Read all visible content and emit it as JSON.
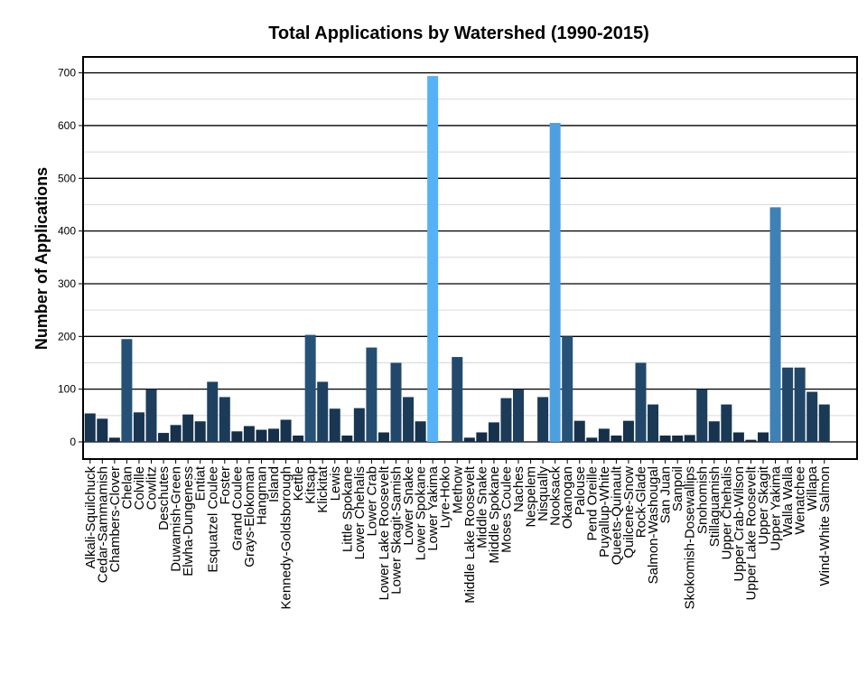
{
  "chart_data": {
    "type": "bar",
    "title": "Total Applications by Watershed (1990-2015)",
    "xlabel": "",
    "ylabel": "Number of Applications",
    "ylim": [
      -35,
      730
    ],
    "yticks": [
      0,
      100,
      200,
      300,
      400,
      500,
      600,
      700
    ],
    "grid": {
      "major": true,
      "minor": true
    },
    "legend": "none",
    "colors": {
      "low": "#132B43",
      "high": "#56B1F7",
      "axis": "#000000",
      "grid_major": "#000000",
      "grid_minor": "#d9d9d9"
    },
    "categories": [
      "Alkali-Squilchuck",
      "Cedar-Sammamish",
      "Chambers-Clover",
      "Chelan",
      "Colville",
      "Cowlitz",
      "Deschutes",
      "Duwamish-Green",
      "Elwha-Dungeness",
      "Entiat",
      "Esquatzel Coulee",
      "Foster",
      "Grand Coulee",
      "Grays-Elokoman",
      "Hangman",
      "Island",
      "Kennedy-Goldsborough",
      "Kettle",
      "Kitsap",
      "Klickitat",
      "Lewis",
      "Little Spokane",
      "Lower Chehalis",
      "Lower Crab",
      "Lower Lake Roosevelt",
      "Lower Skagit-Samish",
      "Lower Snake",
      "Lower Spokane",
      "Lower Yakima",
      "Lyre-Hoko",
      "Methow",
      "Middle Lake Roosevelt",
      "Middle Snake",
      "Middle Spokane",
      "Moses Coulee",
      "Naches",
      "Nespelem",
      "Nisqually",
      "Nooksack",
      "Okanogan",
      "Palouse",
      "Pend Oreille",
      "Puyallup-White",
      "Queets-Quinault",
      "Quilcene-Snow",
      "Rock-Glade",
      "Salmon-Washougal",
      "San Juan",
      "Sanpoil",
      "Skokomish-Dosewallips",
      "Snohomish",
      "Stillaguamish",
      "Upper Chehalis",
      "Upper Crab-Wilson",
      "Upper Lake Roosevelt",
      "Upper Skagit",
      "Upper Yakima",
      "Walla Walla",
      "Wenatchee",
      "Willapa",
      "Wind-White Salmon"
    ],
    "values": [
      54,
      44,
      8,
      195,
      56,
      100,
      17,
      32,
      52,
      39,
      114,
      85,
      20,
      30,
      23,
      25,
      42,
      12,
      203,
      114,
      63,
      12,
      64,
      179,
      18,
      150,
      85,
      39,
      694,
      0,
      161,
      8,
      18,
      37,
      83,
      100,
      0,
      85,
      605,
      200,
      40,
      8,
      25,
      12,
      40,
      150,
      71,
      12,
      12,
      13,
      100,
      39,
      71,
      18,
      4,
      18,
      445,
      141,
      141,
      95,
      71
    ]
  }
}
